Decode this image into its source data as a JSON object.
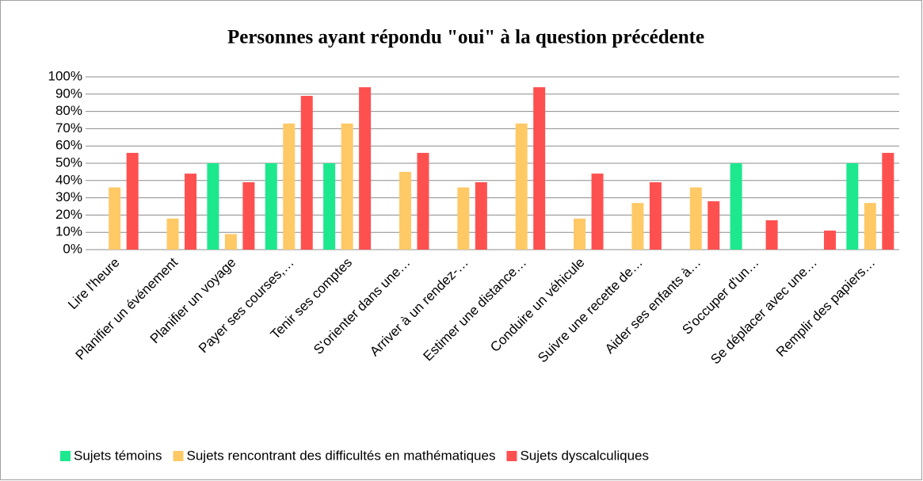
{
  "chart_data": {
    "type": "bar",
    "title": "Personnes ayant répondu \"oui\" à la question précédente",
    "categories": [
      "Lire l'heure",
      "Planifier un événement",
      "Planifier un voyage",
      "Payer ses courses,…",
      "Tenir ses comptes",
      "S'orienter dans une…",
      "Arriver à un rendez-…",
      "Estimer une distance…",
      "Conduire un véhicule",
      "Suivre une recette de…",
      "Aider ses enfants à…",
      "S'occuper d'un…",
      "Se déplacer avec une…",
      "Remplir des papiers…"
    ],
    "series": [
      {
        "name": "Sujets témoins",
        "color": "#1de88e",
        "values": [
          0,
          0,
          50,
          50,
          50,
          0,
          0,
          0,
          0,
          0,
          0,
          50,
          0,
          50
        ]
      },
      {
        "name": "Sujets rencontrant des difficultés en mathématiques",
        "color": "#ffc966",
        "values": [
          36,
          18,
          9,
          73,
          73,
          45,
          36,
          73,
          18,
          27,
          36,
          0,
          0,
          27
        ]
      },
      {
        "name": "Sujets dyscalculiques",
        "color": "#ff5050",
        "values": [
          56,
          44,
          39,
          89,
          94,
          56,
          39,
          94,
          44,
          39,
          28,
          17,
          11,
          56
        ]
      }
    ],
    "ylim": [
      0,
      100
    ],
    "yticks": [
      {
        "value": 0,
        "label": "0%"
      },
      {
        "value": 10,
        "label": "10%"
      },
      {
        "value": 20,
        "label": "20%"
      },
      {
        "value": 30,
        "label": "30%"
      },
      {
        "value": 40,
        "label": "40%"
      },
      {
        "value": 50,
        "label": "50%"
      },
      {
        "value": 60,
        "label": "60%"
      },
      {
        "value": 70,
        "label": "70%"
      },
      {
        "value": 80,
        "label": "80%"
      },
      {
        "value": 90,
        "label": "90%"
      },
      {
        "value": 100,
        "label": "100%"
      }
    ],
    "grid": true,
    "legend": "bottom"
  }
}
